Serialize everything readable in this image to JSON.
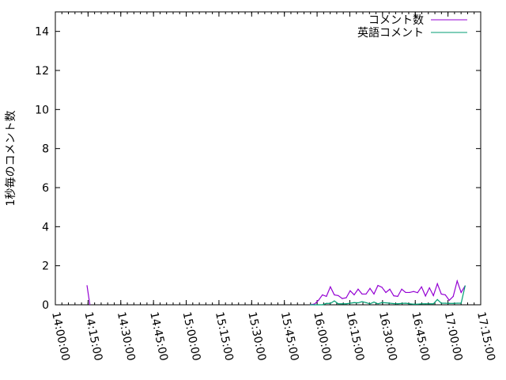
{
  "chart_data": {
    "type": "line",
    "title": "",
    "xlabel": "",
    "ylabel": "1秒毎のコメント数",
    "xlim": [
      "14:00:00",
      "17:15:00"
    ],
    "ylim": [
      0,
      15
    ],
    "xticks": [
      "14:00:00",
      "14:15:00",
      "14:30:00",
      "14:45:00",
      "15:00:00",
      "15:15:00",
      "15:30:00",
      "15:45:00",
      "16:00:00",
      "16:15:00",
      "16:30:00",
      "16:45:00",
      "17:00:00",
      "17:15:00"
    ],
    "yticks": [
      "0",
      "2",
      "4",
      "6",
      "8",
      "10",
      "12",
      "14"
    ],
    "grid": false,
    "legend_position": "top-right",
    "x": [
      "15:57:00",
      "15:58:49",
      "16:00:38",
      "16:02:27",
      "16:04:16",
      "16:06:05",
      "16:07:54",
      "16:09:43",
      "16:11:32",
      "16:13:21",
      "16:15:10",
      "16:16:59",
      "16:18:48",
      "16:20:37",
      "16:22:26",
      "16:24:15",
      "16:26:04",
      "16:27:53",
      "16:29:42",
      "16:31:31",
      "16:33:20",
      "16:35:09",
      "16:36:58",
      "16:38:47",
      "16:40:36",
      "16:42:25",
      "16:44:14",
      "16:46:03",
      "16:47:52",
      "16:49:41",
      "16:51:30",
      "16:53:19",
      "16:55:08",
      "16:56:57",
      "16:58:46",
      "17:00:35",
      "17:02:24",
      "17:04:13",
      "17:06:02",
      "17:07:51"
    ],
    "series": [
      {
        "name": "コメント数",
        "color": "#9400d3",
        "extra_points": [
          [
            "14:14:30",
            1.0
          ],
          [
            "14:15:50",
            0
          ]
        ],
        "values": [
          0,
          0.04,
          0.23,
          0.51,
          0.43,
          0.92,
          0.51,
          0.47,
          0.32,
          0.36,
          0.72,
          0.51,
          0.8,
          0.55,
          0.55,
          0.84,
          0.55,
          0.99,
          0.9,
          0.63,
          0.8,
          0.46,
          0.43,
          0.8,
          0.63,
          0.63,
          0.68,
          0.62,
          0.92,
          0.45,
          0.87,
          0.47,
          1.08,
          0.55,
          0.51,
          0.23,
          0.43,
          1.22,
          0.63,
          0.97
        ]
      },
      {
        "name": "英語コメント",
        "color": "#009e73",
        "values": [
          0,
          0,
          0,
          0,
          0.07,
          0.07,
          0.2,
          0.05,
          0.05,
          0.05,
          0.08,
          0.11,
          0.1,
          0.16,
          0.11,
          0.05,
          0.14,
          0.05,
          0.11,
          0.1,
          0.08,
          0.06,
          0.05,
          0.07,
          0.08,
          0.05,
          0.03,
          0.03,
          0.05,
          0.05,
          0.05,
          0.05,
          0.27,
          0.08,
          0.08,
          0.07,
          0.07,
          0.08,
          0.08,
          0.97
        ]
      }
    ]
  }
}
